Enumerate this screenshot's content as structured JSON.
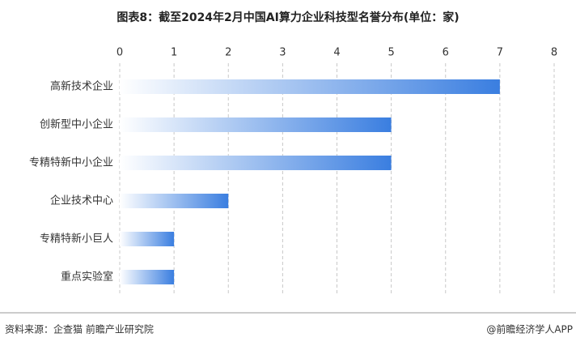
{
  "chart_data": {
    "type": "bar",
    "orientation": "horizontal",
    "title": "图表8：截至2024年2月中国AI算力企业科技型名誉分布(单位：家)",
    "categories": [
      "高新技术企业",
      "创新型中小企业",
      "专精特新中小企业",
      "企业技术中心",
      "专精特新小巨人",
      "重点实验室"
    ],
    "values": [
      7,
      5,
      5,
      2,
      1,
      1
    ],
    "color": "#3a7ee0",
    "xlim": [
      0,
      8
    ],
    "xticks": [
      0,
      1,
      2,
      3,
      4,
      5,
      6,
      7,
      8
    ],
    "grid": true,
    "source": "资料来源：企查猫 前瞻产业研究院",
    "credit": "@前瞻经济学人APP"
  }
}
